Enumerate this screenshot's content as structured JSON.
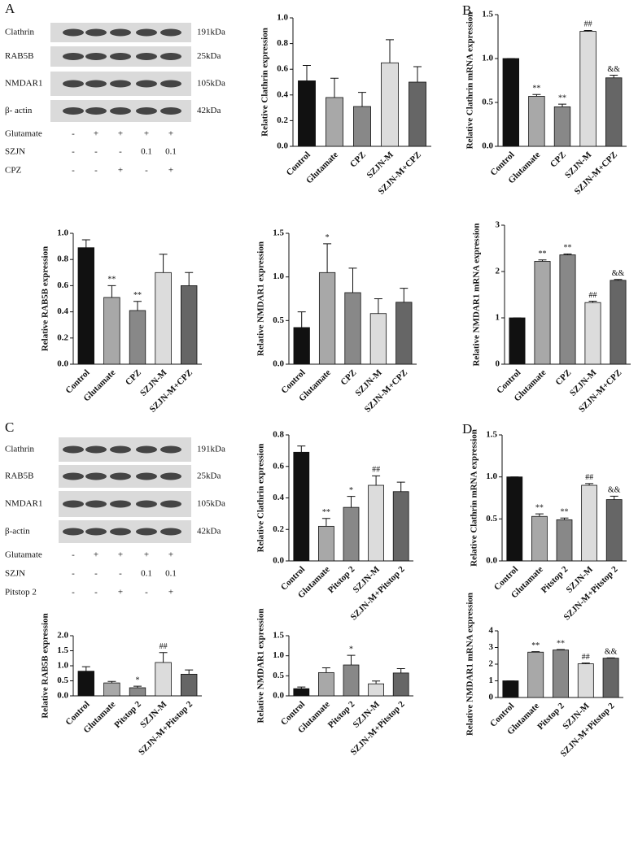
{
  "panel_labels": [
    "A",
    "B",
    "C",
    "D"
  ],
  "blots": [
    {
      "proteins": [
        {
          "name": "Clathrin",
          "size": "191kDa"
        },
        {
          "name": "RAB5B",
          "size": "25kDa"
        },
        {
          "name": "NMDAR1",
          "size": "105kDa"
        },
        {
          "name": "β- actin",
          "size": "42kDa"
        }
      ],
      "conditions": [
        {
          "name": "Glutamate",
          "levels": [
            "-",
            "+",
            "+",
            "+",
            "+"
          ]
        },
        {
          "name": "SZJN",
          "levels": [
            "-",
            "-",
            "-",
            "0.1",
            "0.1"
          ]
        },
        {
          "name": "CPZ",
          "levels": [
            "-",
            "-",
            "+",
            "-",
            "+"
          ]
        }
      ]
    },
    {
      "proteins": [
        {
          "name": "Clathrin",
          "size": "191kDa"
        },
        {
          "name": "RAB5B",
          "size": "25kDa"
        },
        {
          "name": "NMDAR1",
          "size": "105kDa"
        },
        {
          "name": "β-actin",
          "size": "42kDa"
        }
      ],
      "conditions": [
        {
          "name": "Glutamate",
          "levels": [
            "-",
            "+",
            "+",
            "+",
            "+"
          ]
        },
        {
          "name": "SZJN",
          "levels": [
            "-",
            "-",
            "-",
            "0.1",
            "0.1"
          ]
        },
        {
          "name": "Pitstop 2",
          "levels": [
            "-",
            "-",
            "+",
            "-",
            "+"
          ]
        }
      ]
    }
  ],
  "chart_data": [
    {
      "type": "bar",
      "ylabel": "Relative Clathrin expression",
      "categories": [
        "Control",
        "Glutamate",
        "CPZ",
        "SZJN-M",
        "SZJN-M+CPZ"
      ],
      "values": [
        0.51,
        0.38,
        0.31,
        0.65,
        0.5
      ],
      "errors": [
        0.12,
        0.15,
        0.11,
        0.18,
        0.12
      ],
      "annotations": [
        null,
        null,
        null,
        null,
        null
      ],
      "colors": [
        "#111111",
        "#a8a8a8",
        "#888888",
        "#dcdcdc",
        "#666666"
      ],
      "ylim": [
        0,
        1.0
      ],
      "yticks": [
        {
          "value": 0,
          "label": "0.0"
        },
        0.2,
        0.4,
        0.6,
        0.8,
        {
          "value": 1,
          "label": "1.0"
        }
      ]
    },
    {
      "type": "bar",
      "ylabel": "Relative Clathrin mRNA expression",
      "categories": [
        "Control",
        "Glutamate",
        "CPZ",
        "SZJN-M",
        "SZJN-M+CPZ"
      ],
      "values": [
        1.0,
        0.57,
        0.45,
        1.31,
        0.78
      ],
      "errors": [
        0,
        0.02,
        0.03,
        0.01,
        0.03
      ],
      "annotations": [
        null,
        "**",
        "**",
        "##",
        "&&"
      ],
      "colors": [
        "#111111",
        "#a8a8a8",
        "#888888",
        "#dcdcdc",
        "#666666"
      ],
      "ylim": [
        0,
        1.5
      ],
      "yticks": [
        {
          "value": 0,
          "label": "0.0"
        },
        0.5,
        {
          "value": 1,
          "label": "1.0"
        },
        1.5
      ]
    },
    {
      "type": "bar",
      "ylabel": "Relative RAB5B expression",
      "categories": [
        "Control",
        "Glutamate",
        "CPZ",
        "SZJN-M",
        "SZJN-M+CPZ"
      ],
      "values": [
        0.89,
        0.51,
        0.41,
        0.7,
        0.6
      ],
      "errors": [
        0.06,
        0.09,
        0.07,
        0.14,
        0.1
      ],
      "annotations": [
        null,
        "**",
        "**",
        null,
        null
      ],
      "colors": [
        "#111111",
        "#a8a8a8",
        "#888888",
        "#dcdcdc",
        "#666666"
      ],
      "ylim": [
        0,
        1.0
      ],
      "yticks": [
        {
          "value": 0,
          "label": "0.0"
        },
        0.2,
        0.4,
        0.6,
        0.8,
        {
          "value": 1,
          "label": "1.0"
        }
      ]
    },
    {
      "type": "bar",
      "ylabel": "Relative NMDAR1 expression",
      "categories": [
        "Control",
        "Glutamate",
        "CPZ",
        "SZJN-M",
        "SZJN-M+CPZ"
      ],
      "values": [
        0.42,
        1.05,
        0.82,
        0.58,
        0.71
      ],
      "errors": [
        0.18,
        0.33,
        0.28,
        0.17,
        0.16
      ],
      "annotations": [
        null,
        "*",
        null,
        null,
        null
      ],
      "colors": [
        "#111111",
        "#a8a8a8",
        "#888888",
        "#dcdcdc",
        "#666666"
      ],
      "ylim": [
        0,
        1.5
      ],
      "yticks": [
        {
          "value": 0,
          "label": "0.0"
        },
        0.5,
        {
          "value": 1,
          "label": "1.0"
        },
        1.5
      ]
    },
    {
      "type": "bar",
      "ylabel": "Relative NMDAR1 mRNA expression",
      "categories": [
        "Control",
        "Glutamate",
        "CPZ",
        "SZJN-M",
        "SZJN-M+CPZ"
      ],
      "values": [
        1.0,
        2.22,
        2.36,
        1.33,
        1.81
      ],
      "errors": [
        0,
        0.03,
        0.02,
        0.03,
        0.02
      ],
      "annotations": [
        null,
        "**",
        "**",
        "##",
        "&&"
      ],
      "colors": [
        "#111111",
        "#a8a8a8",
        "#888888",
        "#dcdcdc",
        "#666666"
      ],
      "ylim": [
        0,
        3
      ],
      "yticks": [
        0,
        1,
        2,
        3
      ]
    },
    {
      "type": "bar",
      "ylabel": "Relative Clathrin expression",
      "categories": [
        "Control",
        "Glutamate",
        "Pitstop 2",
        "SZJN-M",
        "SZJN-M+Pitstop 2"
      ],
      "values": [
        0.69,
        0.22,
        0.34,
        0.48,
        0.44
      ],
      "errors": [
        0.04,
        0.05,
        0.07,
        0.06,
        0.06
      ],
      "annotations": [
        null,
        "**",
        "*",
        "##",
        null
      ],
      "colors": [
        "#111111",
        "#a8a8a8",
        "#888888",
        "#dcdcdc",
        "#666666"
      ],
      "ylim": [
        0,
        0.8
      ],
      "yticks": [
        {
          "value": 0,
          "label": "0.0"
        },
        0.2,
        0.4,
        0.6,
        0.8
      ]
    },
    {
      "type": "bar",
      "ylabel": "Relative Clathrin mRNA expression",
      "categories": [
        "Control",
        "Glutamate",
        "Pitstop 2",
        "SZJN-M",
        "SZJN-M+Pitstop 2"
      ],
      "values": [
        1.0,
        0.53,
        0.49,
        0.9,
        0.73
      ],
      "errors": [
        0,
        0.03,
        0.02,
        0.02,
        0.04
      ],
      "annotations": [
        null,
        "**",
        "**",
        "##",
        "&&"
      ],
      "colors": [
        "#111111",
        "#a8a8a8",
        "#888888",
        "#dcdcdc",
        "#666666"
      ],
      "ylim": [
        0,
        1.5
      ],
      "yticks": [
        {
          "value": 0,
          "label": "0.0"
        },
        0.5,
        {
          "value": 1,
          "label": "1.0"
        },
        1.5
      ]
    },
    {
      "type": "bar",
      "ylabel": "Relative RAB5B expression",
      "categories": [
        "Control",
        "Glutamate",
        "Pitstop 2",
        "SZJN-M",
        "SZJN-M+Pitstop 2"
      ],
      "values": [
        0.82,
        0.43,
        0.27,
        1.11,
        0.72
      ],
      "errors": [
        0.15,
        0.05,
        0.05,
        0.33,
        0.14
      ],
      "annotations": [
        null,
        null,
        "*",
        "##",
        null
      ],
      "colors": [
        "#111111",
        "#a8a8a8",
        "#888888",
        "#dcdcdc",
        "#666666"
      ],
      "ylim": [
        0,
        2.0
      ],
      "yticks": [
        {
          "value": 0,
          "label": "0.0"
        },
        0.5,
        {
          "value": 1,
          "label": "1.0"
        },
        1.5,
        {
          "value": 2,
          "label": "2.0"
        }
      ]
    },
    {
      "type": "bar",
      "ylabel": "Relative NMDAR1 expression",
      "categories": [
        "Control",
        "Glutamate",
        "Pitstop 2",
        "SZJN-M",
        "SZJN-M+Pitstop 2"
      ],
      "values": [
        0.18,
        0.58,
        0.77,
        0.3,
        0.57
      ],
      "errors": [
        0.04,
        0.12,
        0.24,
        0.07,
        0.11
      ],
      "annotations": [
        null,
        null,
        "*",
        null,
        null
      ],
      "colors": [
        "#111111",
        "#a8a8a8",
        "#888888",
        "#dcdcdc",
        "#666666"
      ],
      "ylim": [
        0,
        1.5
      ],
      "yticks": [
        {
          "value": 0,
          "label": "0.0"
        },
        0.5,
        {
          "value": 1,
          "label": "1.0"
        },
        1.5
      ]
    },
    {
      "type": "bar",
      "ylabel": "Relative NMDAR1 mRNA expression",
      "categories": [
        "Control",
        "Glutamate",
        "Pitstop 2",
        "SZJN-M",
        "SZJN-M+Pitstop 2"
      ],
      "values": [
        1.0,
        2.72,
        2.85,
        2.02,
        2.36
      ],
      "errors": [
        0,
        0.03,
        0.03,
        0.05,
        0.02
      ],
      "annotations": [
        null,
        "**",
        "**",
        "##",
        "&&"
      ],
      "colors": [
        "#111111",
        "#a8a8a8",
        "#888888",
        "#dcdcdc",
        "#666666"
      ],
      "ylim": [
        0,
        4
      ],
      "yticks": [
        0,
        1,
        2,
        3,
        4
      ]
    }
  ]
}
